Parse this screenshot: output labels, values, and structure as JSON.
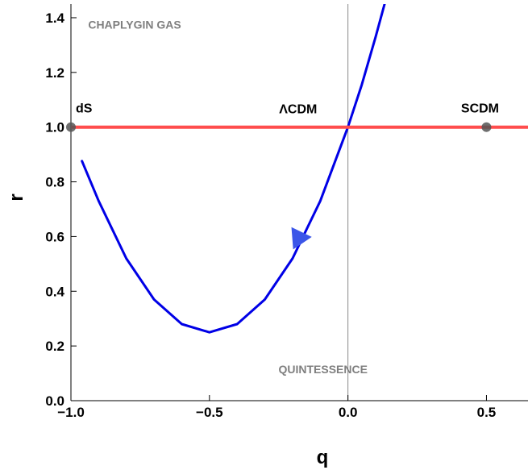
{
  "chart_data": {
    "type": "line",
    "xlabel": "q",
    "ylabel": "r",
    "xlim": [
      -1.0,
      0.65
    ],
    "ylim": [
      0.0,
      1.45
    ],
    "x_ticks": [
      {
        "value": -1.0,
        "label": "−1.0"
      },
      {
        "value": -0.5,
        "label": "−0.5"
      },
      {
        "value": 0.0,
        "label": "0.0"
      },
      {
        "value": 0.5,
        "label": "0.5"
      }
    ],
    "y_ticks": [
      {
        "value": 0.0,
        "label": "0.0"
      },
      {
        "value": 0.2,
        "label": "0.2"
      },
      {
        "value": 0.4,
        "label": "0.4"
      },
      {
        "value": 0.6,
        "label": "0.6"
      },
      {
        "value": 0.8,
        "label": "0.8"
      },
      {
        "value": 1.0,
        "label": "1.0"
      },
      {
        "value": 1.2,
        "label": "1.2"
      },
      {
        "value": 1.4,
        "label": "1.4"
      }
    ],
    "series": [
      {
        "color": "#0000e6",
        "x": [
          -0.96,
          -0.9,
          -0.8,
          -0.7,
          -0.6,
          -0.5,
          -0.4,
          -0.3,
          -0.2,
          -0.1,
          0.0,
          0.05,
          0.1,
          0.135
        ],
        "y": [
          0.876,
          0.73,
          0.52,
          0.37,
          0.28,
          0.25,
          0.28,
          0.37,
          0.52,
          0.73,
          1.0,
          1.155,
          1.33,
          1.46
        ]
      },
      {
        "color": "#ff4d4d",
        "x": [
          -1.0,
          0.65
        ],
        "y": [
          1.0,
          1.0
        ]
      }
    ],
    "arrow": {
      "x": -0.18,
      "y": 0.59,
      "color": "#3b56e8"
    },
    "vertical_reference_line": {
      "x": 0.0
    },
    "points": [
      {
        "label": "dS",
        "x": -1.0,
        "y": 1.0
      },
      {
        "label": "SCDM",
        "x": 0.5,
        "y": 1.0
      }
    ],
    "annotations": [
      {
        "text": "CHAPLYGIN GAS",
        "x": -0.77,
        "y": 1.36
      },
      {
        "text": "ΛCDM",
        "x": -0.18,
        "y": 1.05
      },
      {
        "text": "QUINTESSENCE",
        "x": -0.09,
        "y": 0.1
      }
    ]
  }
}
